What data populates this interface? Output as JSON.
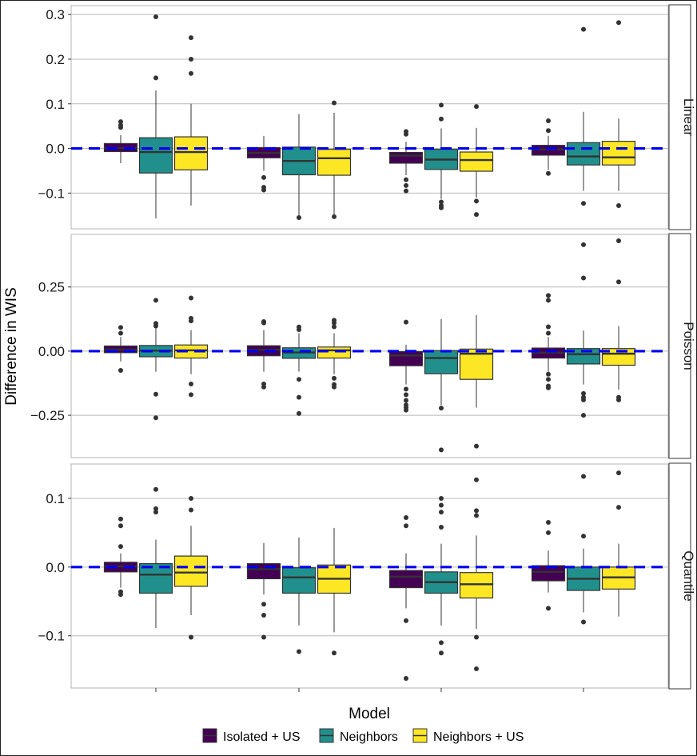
{
  "chart_data": {
    "type": "boxplot",
    "ylabel": "Difference in WIS",
    "xlabel": "",
    "legend_title": "Model",
    "legend_position": "bottom",
    "reference_line": {
      "y": 0,
      "color": "#0000ee",
      "style": "dashed"
    },
    "series": [
      {
        "name": "Isolated + US",
        "color": "#440154"
      },
      {
        "name": "Neighbors",
        "color": "#21908C"
      },
      {
        "name": "Neighbors + US",
        "color": "#FDE725"
      }
    ],
    "panels": [
      {
        "label": "Linear",
        "ylim": [
          -0.18,
          0.32
        ],
        "yticks": [
          -0.1,
          0.0,
          0.1,
          0.2,
          0.3
        ],
        "ytick_labels": [
          "−0.1",
          "0.0",
          "0.1",
          "0.2",
          "0.3"
        ],
        "groups": [
          [
            {
              "q1": -0.007,
              "median": 0.001,
              "q3": 0.011,
              "lo": -0.033,
              "hi": 0.03,
              "outliers": [
                0.047,
                0.052,
                0.06
              ]
            },
            {
              "q1": -0.055,
              "median": -0.008,
              "q3": 0.024,
              "lo": -0.157,
              "hi": 0.13,
              "outliers": [
                0.158,
                0.295
              ]
            },
            {
              "q1": -0.048,
              "median": -0.008,
              "q3": 0.026,
              "lo": -0.128,
              "hi": 0.1,
              "outliers": [
                0.168,
                0.2,
                0.248
              ]
            }
          ],
          [
            {
              "q1": -0.021,
              "median": -0.01,
              "q3": 0.002,
              "lo": -0.05,
              "hi": 0.028,
              "outliers": [
                -0.065,
                -0.087,
                -0.093
              ]
            },
            {
              "q1": -0.059,
              "median": -0.028,
              "q3": 0.003,
              "lo": -0.155,
              "hi": 0.077,
              "outliers": [
                -0.155
              ]
            },
            {
              "q1": -0.06,
              "median": -0.022,
              "q3": -0.002,
              "lo": -0.15,
              "hi": 0.08,
              "outliers": [
                -0.153,
                0.102
              ]
            }
          ],
          [
            {
              "q1": -0.033,
              "median": -0.016,
              "q3": -0.009,
              "lo": -0.06,
              "hi": 0.015,
              "outliers": [
                -0.07,
                -0.083,
                -0.095,
                0.032,
                0.038
              ]
            },
            {
              "q1": -0.047,
              "median": -0.025,
              "q3": -0.002,
              "lo": -0.113,
              "hi": 0.045,
              "outliers": [
                -0.12,
                -0.128,
                -0.133,
                0.066,
                0.097
              ]
            },
            {
              "q1": -0.051,
              "median": -0.026,
              "q3": -0.008,
              "lo": -0.11,
              "hi": 0.046,
              "outliers": [
                -0.118,
                -0.148,
                0.094
              ]
            }
          ],
          [
            {
              "q1": -0.015,
              "median": -0.002,
              "q3": 0.007,
              "lo": -0.048,
              "hi": 0.028,
              "outliers": [
                -0.056,
                0.04,
                0.062
              ]
            },
            {
              "q1": -0.037,
              "median": -0.018,
              "q3": 0.013,
              "lo": -0.095,
              "hi": 0.082,
              "outliers": [
                -0.123,
                0.267
              ]
            },
            {
              "q1": -0.037,
              "median": -0.02,
              "q3": 0.016,
              "lo": -0.095,
              "hi": 0.067,
              "outliers": [
                -0.128,
                0.282
              ]
            }
          ]
        ]
      },
      {
        "label": "Poisson",
        "ylim": [
          -0.415,
          0.455
        ],
        "yticks": [
          -0.25,
          0.0,
          0.25
        ],
        "ytick_labels": [
          "−0.25",
          "0.00",
          "0.25"
        ],
        "groups": [
          [
            {
              "q1": -0.006,
              "median": 0.006,
              "q3": 0.02,
              "lo": -0.04,
              "hi": 0.055,
              "outliers": [
                -0.075,
                0.07,
                0.092
              ]
            },
            {
              "q1": -0.022,
              "median": 0.002,
              "q3": 0.022,
              "lo": -0.08,
              "hi": 0.09,
              "outliers": [
                -0.168,
                -0.26,
                0.098,
                0.108,
                0.198
              ]
            },
            {
              "q1": -0.027,
              "median": 0.003,
              "q3": 0.024,
              "lo": -0.09,
              "hi": 0.082,
              "outliers": [
                -0.128,
                -0.17,
                0.118,
                0.128,
                0.207
              ]
            }
          ],
          [
            {
              "q1": -0.018,
              "median": 0.005,
              "q3": 0.021,
              "lo": -0.08,
              "hi": 0.082,
              "outliers": [
                -0.128,
                -0.14,
                0.11,
                0.115
              ]
            },
            {
              "q1": -0.028,
              "median": -0.005,
              "q3": 0.013,
              "lo": -0.08,
              "hi": 0.07,
              "outliers": [
                -0.11,
                -0.18,
                -0.243,
                0.084,
                0.094
              ]
            },
            {
              "q1": -0.027,
              "median": 0.003,
              "q3": 0.016,
              "lo": -0.09,
              "hi": 0.07,
              "outliers": [
                -0.106,
                -0.13,
                -0.14,
                0.095,
                0.11,
                0.12
              ]
            }
          ],
          [
            {
              "q1": -0.057,
              "median": -0.017,
              "q3": -0.002,
              "lo": -0.13,
              "hi": 0.025,
              "outliers": [
                -0.148,
                -0.17,
                -0.192,
                -0.21,
                -0.22,
                -0.23,
                0.113
              ]
            },
            {
              "q1": -0.088,
              "median": -0.027,
              "q3": 0.002,
              "lo": -0.21,
              "hi": 0.125,
              "outliers": [
                -0.222,
                -0.385
              ]
            },
            {
              "q1": -0.11,
              "median": -0.01,
              "q3": 0.008,
              "lo": -0.22,
              "hi": 0.14,
              "outliers": [
                -0.37
              ]
            }
          ],
          [
            {
              "q1": -0.027,
              "median": -0.006,
              "q3": 0.012,
              "lo": -0.08,
              "hi": 0.055,
              "outliers": [
                -0.09,
                -0.11,
                -0.136,
                -0.143,
                0.07,
                0.095,
                0.198,
                0.217
              ]
            },
            {
              "q1": -0.05,
              "median": -0.012,
              "q3": 0.01,
              "lo": -0.13,
              "hi": 0.08,
              "outliers": [
                -0.165,
                -0.18,
                -0.19,
                -0.25,
                0.285,
                0.415
              ]
            },
            {
              "q1": -0.055,
              "median": -0.01,
              "q3": 0.01,
              "lo": -0.15,
              "hi": 0.097,
              "outliers": [
                -0.18,
                -0.19,
                0.27,
                0.43
              ]
            }
          ]
        ]
      },
      {
        "label": "Quantile",
        "ylim": [
          -0.176,
          0.15
        ],
        "yticks": [
          -0.1,
          0.0,
          0.1
        ],
        "ytick_labels": [
          "−0.1",
          "0.0",
          "0.1"
        ],
        "groups": [
          [
            {
              "q1": -0.007,
              "median": 0.001,
              "q3": 0.007,
              "lo": -0.03,
              "hi": 0.02,
              "outliers": [
                -0.036,
                -0.04,
                0.03,
                0.06,
                0.07
              ]
            },
            {
              "q1": -0.038,
              "median": -0.011,
              "q3": 0.005,
              "lo": -0.089,
              "hi": 0.04,
              "outliers": [
                0.08,
                0.085,
                0.113
              ]
            },
            {
              "q1": -0.028,
              "median": -0.008,
              "q3": 0.016,
              "lo": -0.07,
              "hi": 0.06,
              "outliers": [
                -0.102,
                0.083,
                0.1
              ]
            }
          ],
          [
            {
              "q1": -0.017,
              "median": -0.003,
              "q3": 0.005,
              "lo": -0.04,
              "hi": 0.035,
              "outliers": [
                -0.054,
                -0.07,
                -0.102
              ]
            },
            {
              "q1": -0.038,
              "median": -0.015,
              "q3": -0.001,
              "lo": -0.085,
              "hi": 0.043,
              "outliers": [
                -0.123
              ]
            },
            {
              "q1": -0.038,
              "median": -0.017,
              "q3": 0.003,
              "lo": -0.095,
              "hi": 0.057,
              "outliers": [
                -0.125
              ]
            }
          ],
          [
            {
              "q1": -0.03,
              "median": -0.014,
              "q3": -0.005,
              "lo": -0.06,
              "hi": 0.02,
              "outliers": [
                -0.078,
                -0.162,
                0.06,
                0.072
              ]
            },
            {
              "q1": -0.038,
              "median": -0.022,
              "q3": -0.007,
              "lo": -0.085,
              "hi": 0.034,
              "outliers": [
                -0.11,
                -0.125,
                0.058,
                0.08,
                0.09,
                0.1
              ]
            },
            {
              "q1": -0.045,
              "median": -0.025,
              "q3": -0.008,
              "lo": -0.09,
              "hi": 0.046,
              "outliers": [
                -0.102,
                -0.148,
                0.075,
                0.082,
                0.127
              ]
            }
          ],
          [
            {
              "q1": -0.02,
              "median": -0.007,
              "q3": 0.002,
              "lo": -0.037,
              "hi": 0.024,
              "outliers": [
                -0.06,
                0.05,
                0.065
              ]
            },
            {
              "q1": -0.034,
              "median": -0.017,
              "q3": 0.0,
              "lo": -0.066,
              "hi": 0.027,
              "outliers": [
                -0.08,
                0.045,
                0.132
              ]
            },
            {
              "q1": -0.032,
              "median": -0.015,
              "q3": 0.0,
              "lo": -0.072,
              "hi": 0.034,
              "outliers": [
                0.087,
                0.137
              ]
            }
          ]
        ]
      }
    ]
  }
}
